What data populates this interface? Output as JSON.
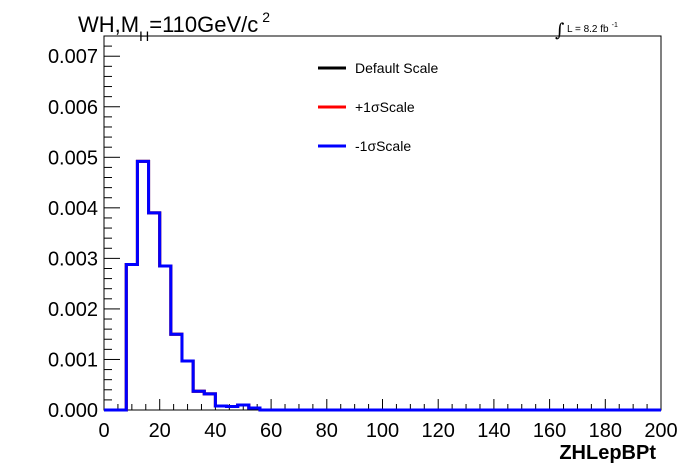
{
  "chart_data": {
    "type": "step-histogram",
    "title": {
      "prefix": "WH,M",
      "subscript": "H",
      "suffix": "=110GeV/c",
      "superscript": "2"
    },
    "luminosity": {
      "integral_symbol": "∫",
      "label": "L = 8.2 fb",
      "superscript": "-1"
    },
    "xlabel": "ZHLepBPt",
    "ylabel": "",
    "xlim": [
      0,
      200
    ],
    "ylim": [
      0,
      0.0074
    ],
    "x_ticks": [
      "0",
      "20",
      "40",
      "60",
      "80",
      "100",
      "120",
      "140",
      "160",
      "180",
      "200"
    ],
    "x_tick_values": [
      0,
      20,
      40,
      60,
      80,
      100,
      120,
      140,
      160,
      180,
      200
    ],
    "y_ticks": [
      "0.000",
      "0.001",
      "0.002",
      "0.003",
      "0.004",
      "0.005",
      "0.006",
      "0.007"
    ],
    "y_tick_values": [
      0,
      0.001,
      0.002,
      0.003,
      0.004,
      0.005,
      0.006,
      0.007
    ],
    "bin_edges": [
      0,
      4,
      8,
      12,
      16,
      20,
      24,
      28,
      32,
      36,
      40,
      44,
      48,
      52,
      56,
      60,
      200
    ],
    "legend_position": "top-center",
    "series": [
      {
        "name": "Default Scale",
        "color": "#000000",
        "values": [
          0,
          0,
          0.00288,
          0.00492,
          0.0039,
          0.00285,
          0.0015,
          0.00097,
          0.00037,
          0.00032,
          8e-05,
          7e-05,
          0.0001,
          4e-05,
          0.0,
          0.0
        ]
      },
      {
        "name": "+1σScale",
        "color": "#ff0000",
        "values": [
          0,
          0,
          0.00288,
          0.00492,
          0.0039,
          0.00285,
          0.0015,
          0.00097,
          0.00037,
          0.00032,
          8e-05,
          7e-05,
          0.0001,
          4e-05,
          0.0,
          0.0
        ]
      },
      {
        "name": "-1σScale",
        "color": "#0000ff",
        "values": [
          0,
          0,
          0.00288,
          0.00492,
          0.0039,
          0.00285,
          0.0015,
          0.00097,
          0.00037,
          0.00032,
          8e-05,
          7e-05,
          0.0001,
          4e-05,
          0.0,
          0.0
        ]
      }
    ],
    "grid": false
  }
}
